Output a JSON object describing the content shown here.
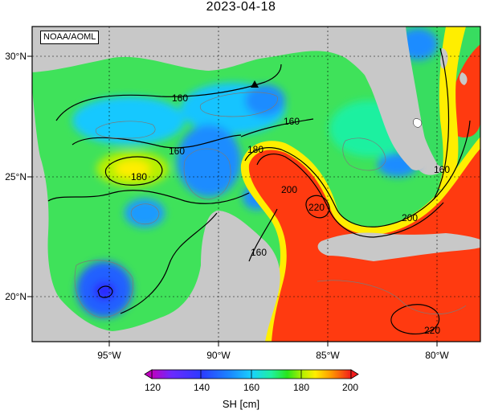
{
  "title": "2023-04-18",
  "badge": "NOAA/AOML",
  "lat_labels": [
    "30°N",
    "25°N",
    "20°N"
  ],
  "lon_labels": [
    "95°W",
    "90°W",
    "85°W",
    "80°W"
  ],
  "contour_labels": {
    "c160_north": "160",
    "c160_mid": "160",
    "c160_west": "160",
    "c180_west": "180",
    "c180_loop": "180",
    "c200_loop": "200",
    "c220_loop": "220",
    "c160_south": "160",
    "c200_cuba": "200",
    "c160_straits": "160",
    "c220_carib": "220"
  },
  "colorbar": {
    "label": "SH [cm]",
    "ticks": [
      "120",
      "140",
      "160",
      "180",
      "200"
    ],
    "min": 120,
    "max": 200,
    "colors": [
      "#c000c0",
      "#6a2bff",
      "#2b3bff",
      "#1a8cff",
      "#19d0ff",
      "#1ff0a0",
      "#29e61a",
      "#b8f000",
      "#ffee00",
      "#ff9a00",
      "#ff3a10",
      "#f21c1c"
    ]
  },
  "marker": "triangle"
}
